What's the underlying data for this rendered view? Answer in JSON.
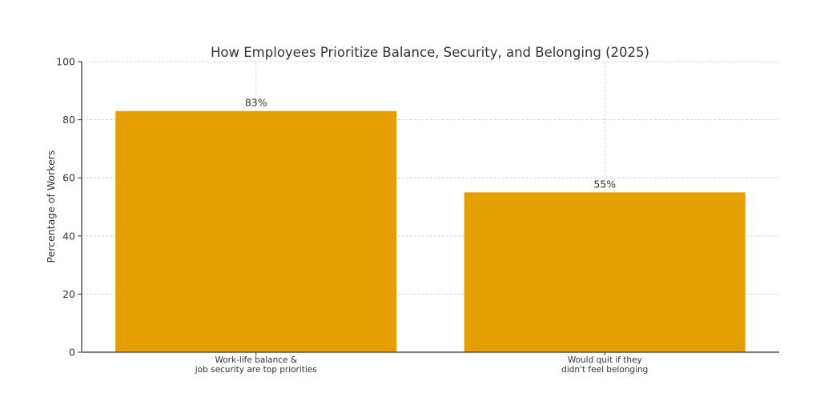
{
  "chart_data": {
    "type": "bar",
    "title": "How Employees Prioritize Balance, Security, and Belonging (2025)",
    "xlabel": "",
    "ylabel": "Percentage of Workers",
    "categories": [
      [
        "Work-life balance &",
        "job security are top priorities"
      ],
      [
        "Would quit if they",
        "didn't feel belonging"
      ]
    ],
    "values": [
      83,
      55
    ],
    "data_labels": [
      "83%",
      "55%"
    ],
    "ylim": [
      0,
      100
    ],
    "yticks": [
      0,
      20,
      40,
      60,
      80,
      100
    ],
    "grid": true,
    "bar_color": "#e69f00"
  }
}
